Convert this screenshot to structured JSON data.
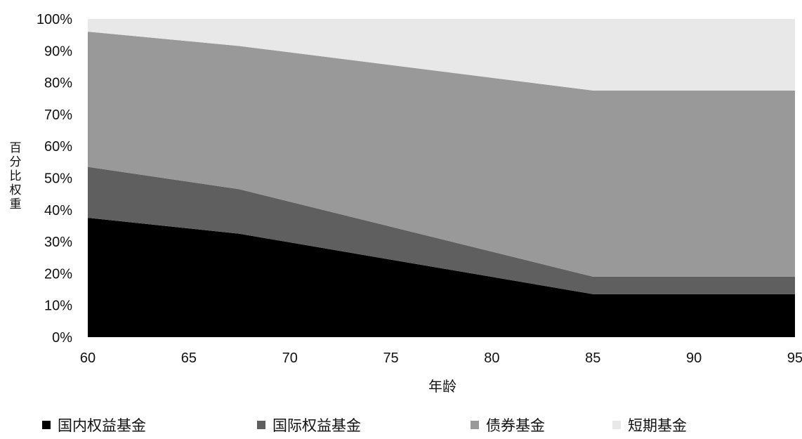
{
  "chart_data": {
    "type": "area",
    "stacked": true,
    "xlabel": "年龄",
    "ylabel": "百分比权重",
    "x": [
      60,
      67.5,
      85,
      95
    ],
    "xlim": [
      60,
      95
    ],
    "ylim": [
      0,
      100
    ],
    "x_ticks": [
      "60",
      "65",
      "70",
      "75",
      "80",
      "85",
      "90",
      "95"
    ],
    "y_ticks": [
      "0%",
      "10%",
      "20%",
      "30%",
      "40%",
      "50%",
      "60%",
      "70%",
      "80%",
      "90%",
      "100%"
    ],
    "grid": false,
    "legend_position": "bottom",
    "series": [
      {
        "name": "国内权益基金",
        "values": [
          37.5,
          32.5,
          13.5,
          13.5
        ],
        "color": "#000000"
      },
      {
        "name": "国际权益基金",
        "values": [
          16.0,
          14.0,
          5.5,
          5.5
        ],
        "color": "#5f5f5f"
      },
      {
        "name": "债券基金",
        "values": [
          42.5,
          45.0,
          58.5,
          58.5
        ],
        "color": "#999999"
      },
      {
        "name": "短期基金",
        "values": [
          4.0,
          8.5,
          22.5,
          22.5
        ],
        "color": "#e8e8e8"
      }
    ]
  }
}
